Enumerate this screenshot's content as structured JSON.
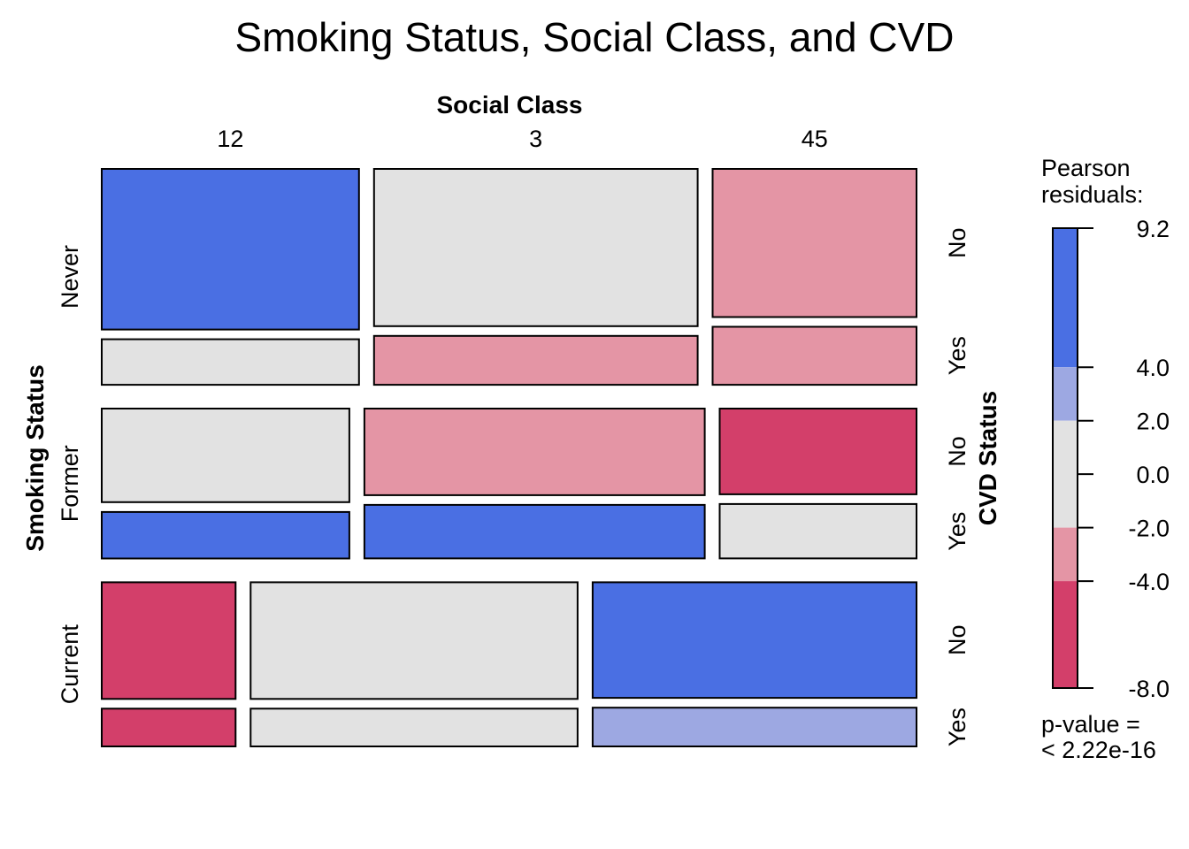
{
  "chart_data": {
    "type": "mosaic",
    "title": "Smoking Status, Social Class, and CVD",
    "column_variable": "Social Class",
    "row_variable": "Smoking Status",
    "cell_variable": "CVD Status",
    "columns": [
      "12",
      "3",
      "45"
    ],
    "rows": [
      "Never",
      "Former",
      "Current"
    ],
    "cvd_levels": [
      "No",
      "Yes"
    ],
    "cells": {
      "Never": {
        "col_widths": [
          0.3157,
          0.3971,
          0.2502
        ],
        "12": {
          "No": 0.7477,
          "Yes": 0.2119,
          "no_color": "#4A6FE3",
          "yes_color": "#E2E2E2"
        },
        "3": {
          "No": 0.7329,
          "Yes": 0.2278,
          "no_color": "#E2E2E2",
          "yes_color": "#E495A5"
        },
        "45": {
          "No": 0.6864,
          "Yes": 0.2688,
          "no_color": "#E495A5",
          "yes_color": "#E495A5"
        }
      },
      "Former": {
        "col_widths": [
          0.3038,
          0.4176,
          0.2415
        ],
        "12": {
          "No": 0.632,
          "Yes": 0.3138,
          "no_color": "#E2E2E2",
          "yes_color": "#4A6FE3"
        },
        "3": {
          "No": 0.5824,
          "Yes": 0.3601,
          "no_color": "#E495A5",
          "yes_color": "#4A6FE3"
        },
        "45": {
          "No": 0.5776,
          "Yes": 0.3667,
          "no_color": "#D33F6A",
          "yes_color": "#E2E2E2"
        }
      },
      "Current": {
        "col_widths": [
          0.1645,
          0.4019,
          0.3981
        ],
        "12": {
          "No": 0.7073,
          "Yes": 0.2287,
          "no_color": "#D33F6A",
          "yes_color": "#D33F6A"
        },
        "3": {
          "No": 0.7073,
          "Yes": 0.2287,
          "no_color": "#E2E2E2",
          "yes_color": "#E2E2E2"
        },
        "45": {
          "No": 0.6861,
          "Yes": 0.23,
          "no_color": "#4A6FE3",
          "yes_color": "#9DA8E2"
        }
      },
      "row_heights": [
        0.2943,
        0.2043,
        0.2238
      ]
    },
    "legend": {
      "title": "Pearson residuals:",
      "title_lines": [
        "Pearson",
        "residuals:"
      ],
      "breaks": [
        9.2,
        4.0,
        2.0,
        0.0,
        -2.0,
        -4.0,
        -8.0
      ],
      "tick_labels": [
        "9.2",
        "4.0",
        "2.0",
        "0.0",
        "-2.0",
        "-4.0",
        "-8.0"
      ],
      "bands": [
        {
          "from": 4.0,
          "to": 9.2,
          "color": "#4A6FE3"
        },
        {
          "from": 2.0,
          "to": 4.0,
          "color": "#9DA8E2"
        },
        {
          "from": -2.0,
          "to": 2.0,
          "color": "#E2E2E2"
        },
        {
          "from": -4.0,
          "to": -2.0,
          "color": "#E495A5"
        },
        {
          "from": -8.0,
          "to": -4.0,
          "color": "#D33F6A"
        }
      ],
      "p_value_lines": [
        "p-value =",
        "< 2.22e-16"
      ]
    }
  }
}
